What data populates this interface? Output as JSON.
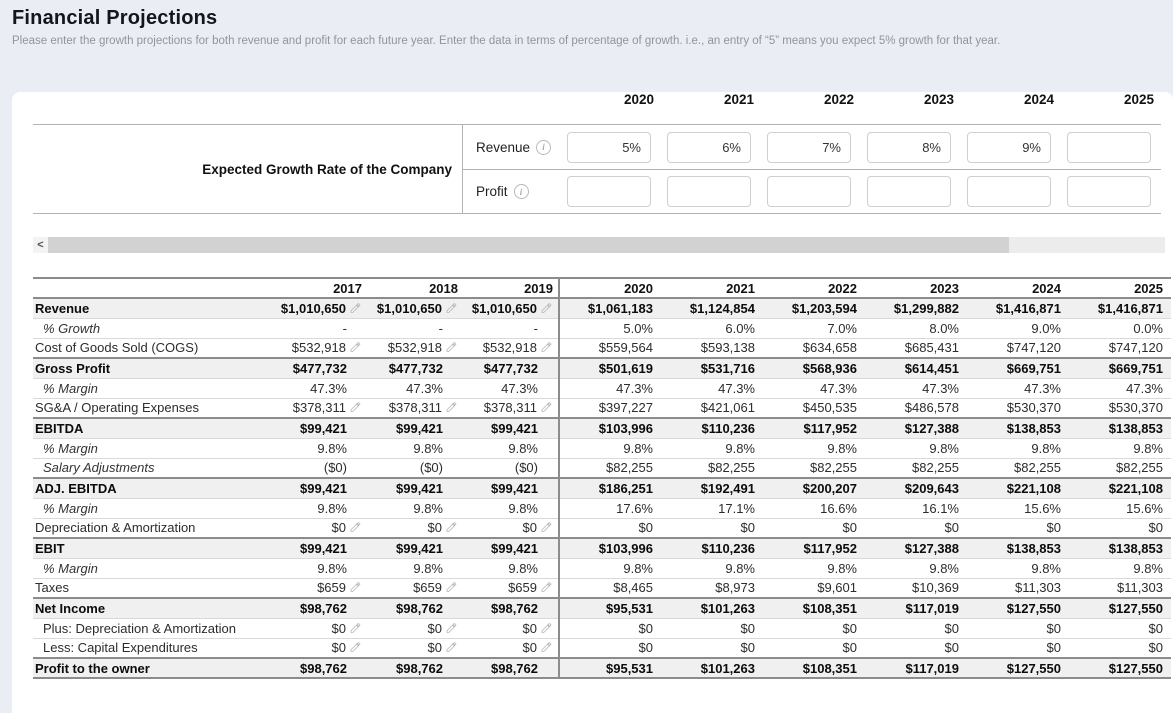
{
  "page": {
    "title": "Financial Projections",
    "subtitle": "Please enter the growth projections for both revenue and profit for each future year. Enter the data in terms of percentage of growth. i.e., an entry of “5” means you expect 5% growth for that year."
  },
  "growth_section": {
    "label": "Expected Growth Rate of the Company",
    "years": [
      "2020",
      "2021",
      "2022",
      "2023",
      "2024",
      "2025"
    ],
    "rows": [
      {
        "label": "Revenue",
        "info_icon": "i",
        "values": [
          "5%",
          "6%",
          "7%",
          "8%",
          "9%",
          ""
        ]
      },
      {
        "label": "Profit",
        "info_icon": "i",
        "values": [
          "",
          "",
          "",
          "",
          "",
          ""
        ]
      }
    ]
  },
  "scrollbar": {
    "left_arrow": "<"
  },
  "projections_table": {
    "historical_years": [
      "2017",
      "2018",
      "2019"
    ],
    "projection_years": [
      "2020",
      "2021",
      "2022",
      "2023",
      "2024",
      "2025"
    ],
    "rows": [
      {
        "label": "Revenue",
        "type": "section",
        "editable": true,
        "hist": [
          "$1,010,650",
          "$1,010,650",
          "$1,010,650"
        ],
        "proj": [
          "$1,061,183",
          "$1,124,854",
          "$1,203,594",
          "$1,299,882",
          "$1,416,871",
          "$1,416,871"
        ]
      },
      {
        "label": "% Growth",
        "type": "italic",
        "editable": false,
        "hist": [
          "-",
          "-",
          "-"
        ],
        "proj": [
          "5.0%",
          "6.0%",
          "7.0%",
          "8.0%",
          "9.0%",
          "0.0%"
        ]
      },
      {
        "label": "Cost of Goods Sold (COGS)",
        "type": "regular",
        "editable": true,
        "hist": [
          "$532,918",
          "$532,918",
          "$532,918"
        ],
        "proj": [
          "$559,564",
          "$593,138",
          "$634,658",
          "$685,431",
          "$747,120",
          "$747,120"
        ]
      },
      {
        "label": "Gross Profit",
        "type": "section",
        "editable": false,
        "hist": [
          "$477,732",
          "$477,732",
          "$477,732"
        ],
        "proj": [
          "$501,619",
          "$531,716",
          "$568,936",
          "$614,451",
          "$669,751",
          "$669,751"
        ]
      },
      {
        "label": "% Margin",
        "type": "italic",
        "editable": false,
        "hist": [
          "47.3%",
          "47.3%",
          "47.3%"
        ],
        "proj": [
          "47.3%",
          "47.3%",
          "47.3%",
          "47.3%",
          "47.3%",
          "47.3%"
        ]
      },
      {
        "label": "SG&A / Operating Expenses",
        "type": "regular",
        "editable": true,
        "hist": [
          "$378,311",
          "$378,311",
          "$378,311"
        ],
        "proj": [
          "$397,227",
          "$421,061",
          "$450,535",
          "$486,578",
          "$530,370",
          "$530,370"
        ]
      },
      {
        "label": "EBITDA",
        "type": "section",
        "editable": false,
        "hist": [
          "$99,421",
          "$99,421",
          "$99,421"
        ],
        "proj": [
          "$103,996",
          "$110,236",
          "$117,952",
          "$127,388",
          "$138,853",
          "$138,853"
        ]
      },
      {
        "label": "% Margin",
        "type": "italic",
        "editable": false,
        "hist": [
          "9.8%",
          "9.8%",
          "9.8%"
        ],
        "proj": [
          "9.8%",
          "9.8%",
          "9.8%",
          "9.8%",
          "9.8%",
          "9.8%"
        ]
      },
      {
        "label": "Salary Adjustments",
        "type": "italic",
        "editable": false,
        "hist": [
          "($0)",
          "($0)",
          "($0)"
        ],
        "proj": [
          "$82,255",
          "$82,255",
          "$82,255",
          "$82,255",
          "$82,255",
          "$82,255"
        ]
      },
      {
        "label": "ADJ. EBITDA",
        "type": "section",
        "editable": false,
        "hist": [
          "$99,421",
          "$99,421",
          "$99,421"
        ],
        "proj": [
          "$186,251",
          "$192,491",
          "$200,207",
          "$209,643",
          "$221,108",
          "$221,108"
        ]
      },
      {
        "label": "% Margin",
        "type": "italic",
        "editable": false,
        "hist": [
          "9.8%",
          "9.8%",
          "9.8%"
        ],
        "proj": [
          "17.6%",
          "17.1%",
          "16.6%",
          "16.1%",
          "15.6%",
          "15.6%"
        ]
      },
      {
        "label": "Depreciation & Amortization",
        "type": "regular",
        "editable": true,
        "hist": [
          "$0",
          "$0",
          "$0"
        ],
        "proj": [
          "$0",
          "$0",
          "$0",
          "$0",
          "$0",
          "$0"
        ]
      },
      {
        "label": "EBIT",
        "type": "section",
        "editable": false,
        "hist": [
          "$99,421",
          "$99,421",
          "$99,421"
        ],
        "proj": [
          "$103,996",
          "$110,236",
          "$117,952",
          "$127,388",
          "$138,853",
          "$138,853"
        ]
      },
      {
        "label": "% Margin",
        "type": "italic",
        "editable": false,
        "hist": [
          "9.8%",
          "9.8%",
          "9.8%"
        ],
        "proj": [
          "9.8%",
          "9.8%",
          "9.8%",
          "9.8%",
          "9.8%",
          "9.8%"
        ]
      },
      {
        "label": "Taxes",
        "type": "regular",
        "editable": true,
        "hist": [
          "$659",
          "$659",
          "$659"
        ],
        "proj": [
          "$8,465",
          "$8,973",
          "$9,601",
          "$10,369",
          "$11,303",
          "$11,303"
        ]
      },
      {
        "label": "Net Income",
        "type": "section",
        "editable": false,
        "hist": [
          "$98,762",
          "$98,762",
          "$98,762"
        ],
        "proj": [
          "$95,531",
          "$101,263",
          "$108,351",
          "$117,019",
          "$127,550",
          "$127,550"
        ]
      },
      {
        "label": "Plus: Depreciation & Amortization",
        "type": "indent",
        "editable": true,
        "hist": [
          "$0",
          "$0",
          "$0"
        ],
        "proj": [
          "$0",
          "$0",
          "$0",
          "$0",
          "$0",
          "$0"
        ]
      },
      {
        "label": "Less: Capital Expenditures",
        "type": "indent",
        "editable": true,
        "hist": [
          "$0",
          "$0",
          "$0"
        ],
        "proj": [
          "$0",
          "$0",
          "$0",
          "$0",
          "$0",
          "$0"
        ]
      },
      {
        "label": "Profit to the owner",
        "type": "section",
        "editable": false,
        "hist": [
          "$98,762",
          "$98,762",
          "$98,762"
        ],
        "proj": [
          "$95,531",
          "$101,263",
          "$108,351",
          "$117,019",
          "$127,550",
          "$127,550"
        ]
      }
    ]
  },
  "colors": {
    "page_bg": "#eaedf4",
    "card_bg": "#ffffff",
    "section_row_bg": "#f0f0f0",
    "dark_border": "#8c8c8c",
    "light_border": "#d9d9d9",
    "pencil_icon": "#b9b9b9",
    "subtitle_text": "#8f959e"
  }
}
